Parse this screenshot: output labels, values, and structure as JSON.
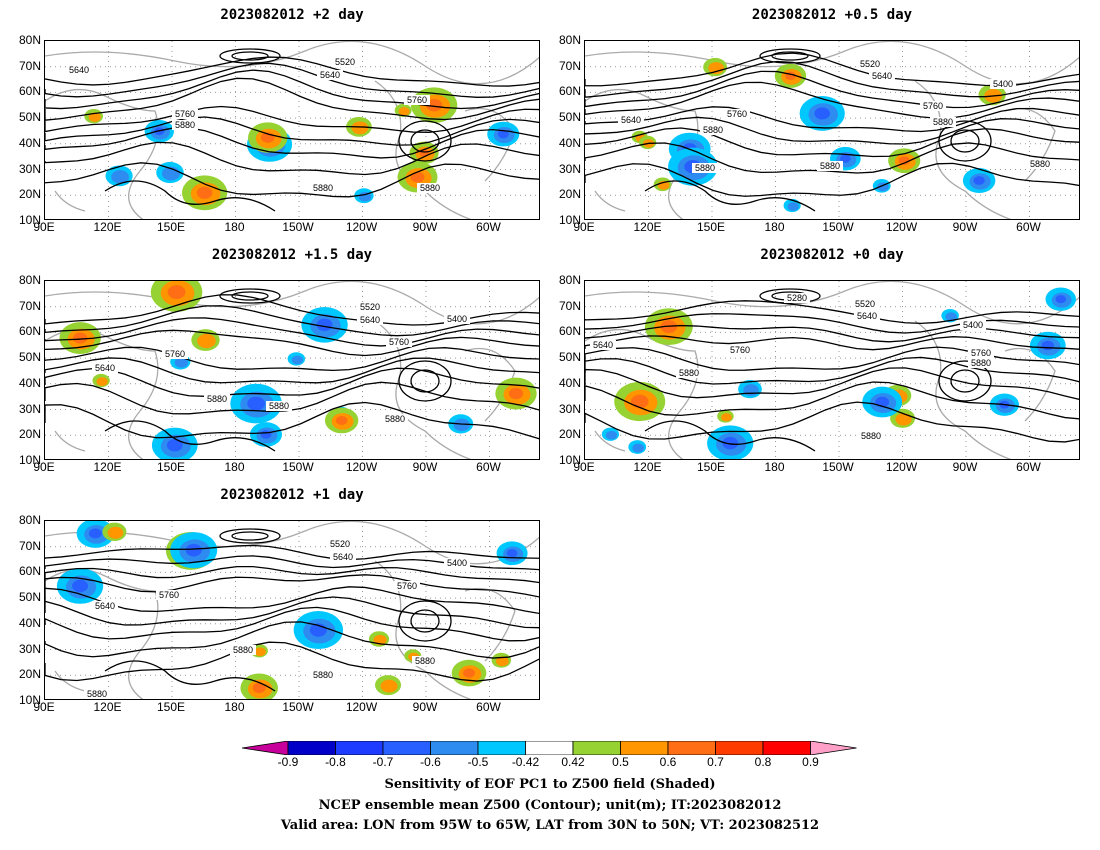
{
  "panels": [
    {
      "id": "p2",
      "title": "2023082012 +2 day"
    },
    {
      "id": "p05",
      "title": "2023082012 +0.5 day"
    },
    {
      "id": "p15",
      "title": "2023082012 +1.5 day"
    },
    {
      "id": "p0",
      "title": "2023082012 +0 day"
    },
    {
      "id": "p1",
      "title": "2023082012 +1 day"
    }
  ],
  "axes": {
    "lat_labels": [
      "80N",
      "70N",
      "60N",
      "50N",
      "40N",
      "30N",
      "20N",
      "10N"
    ],
    "lon_labels": [
      "90E",
      "120E",
      "150E",
      "180",
      "150W",
      "120W",
      "90W",
      "60W"
    ]
  },
  "contour_labels": {
    "p2": [
      "5520",
      "5640",
      "5640",
      "5760",
      "5760",
      "5880",
      "5880",
      "5880"
    ],
    "p05": [
      "5520",
      "5640",
      "5640",
      "5400",
      "5760",
      "5760",
      "5880",
      "5880",
      "5880",
      "5880",
      "5880"
    ],
    "p15": [
      "5520",
      "5640",
      "5640",
      "5400",
      "5760",
      "5760",
      "5880",
      "5880",
      "5880"
    ],
    "p0": [
      "5280",
      "5520",
      "5640",
      "5640",
      "5400",
      "5760",
      "5760",
      "5880",
      "5880",
      "5880"
    ],
    "p1": [
      "5520",
      "5640",
      "5640",
      "5400",
      "5760",
      "5760",
      "5880",
      "5880",
      "5880",
      "5880"
    ]
  },
  "colorbar": {
    "labels": [
      "-0.9",
      "-0.8",
      "-0.7",
      "-0.6",
      "-0.5",
      "-0.42",
      "0.42",
      "0.5",
      "0.6",
      "0.7",
      "0.8",
      "0.9"
    ],
    "colors": [
      "#0000c8",
      "#1e3cff",
      "#2860ff",
      "#2e8cf0",
      "#00c8ff",
      "#ffffff",
      "#96d232",
      "#ff9600",
      "#ff6e14",
      "#ff3c00",
      "#ff0000"
    ],
    "low_arrow": "#c8009b",
    "high_arrow": "#ffa0c8"
  },
  "footer": {
    "line1": "Sensitivity of EOF PC1 to Z500 field (Shaded)",
    "line2": "NCEP ensemble mean Z500 (Contour); unit(m); IT:2023082012",
    "line3": "Valid area: LON from 95W to 65W, LAT from 30N to 50N; VT: 2023082512"
  }
}
